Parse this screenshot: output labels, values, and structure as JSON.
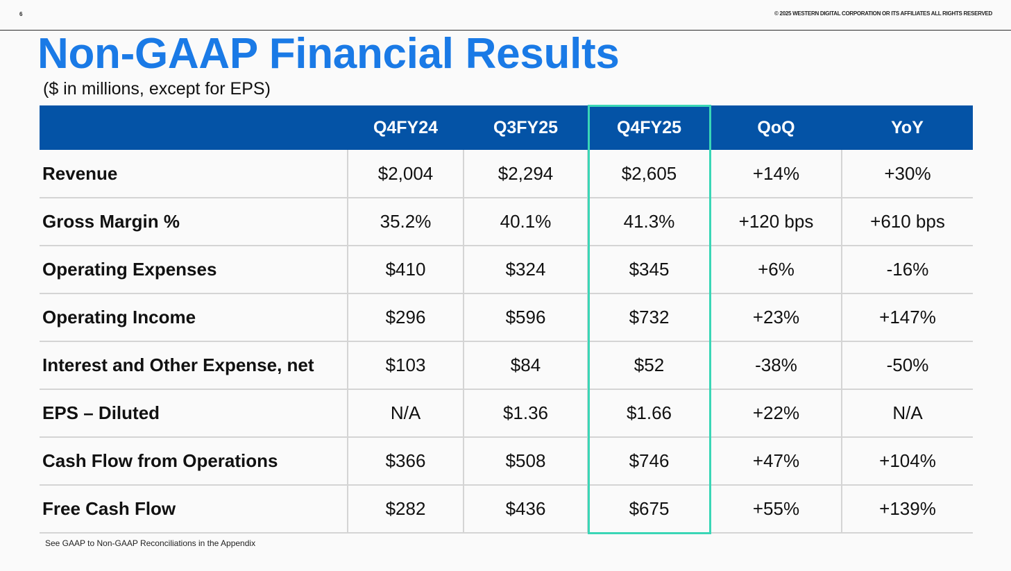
{
  "header": {
    "page_number": "6",
    "copyright": "© 2025 WESTERN DIGITAL CORPORATION OR ITS AFFILIATES  ALL RIGHTS RESERVED"
  },
  "title": "Non-GAAP Financial Results",
  "subtitle": "($ in millions, except for EPS)",
  "table": {
    "columns": [
      "",
      "Q4FY24",
      "Q3FY25",
      "Q4FY25",
      "QoQ",
      "YoY"
    ],
    "highlighted_column": "Q4FY25",
    "rows": [
      [
        "Revenue",
        "$2,004",
        "$2,294",
        "$2,605",
        "+14%",
        "+30%"
      ],
      [
        "Gross Margin %",
        "35.2%",
        "40.1%",
        "41.3%",
        "+120 bps",
        "+610 bps"
      ],
      [
        "Operating Expenses",
        "$410",
        "$324",
        "$345",
        "+6%",
        "-16%"
      ],
      [
        "Operating Income",
        "$296",
        "$596",
        "$732",
        "+23%",
        "+147%"
      ],
      [
        "Interest and Other Expense, net",
        "$103",
        "$84",
        "$52",
        "-38%",
        "-50%"
      ],
      [
        "EPS – Diluted",
        "N/A",
        "$1.36",
        "$1.66",
        "+22%",
        "N/A"
      ],
      [
        "Cash Flow from Operations",
        "$366",
        "$508",
        "$746",
        "+47%",
        "+104%"
      ],
      [
        "Free Cash Flow",
        "$282",
        "$436",
        "$675",
        "+55%",
        "+139%"
      ]
    ]
  },
  "footnote": "See GAAP to Non-GAAP Reconciliations in the Appendix",
  "colors": {
    "title": "#1a7ae6",
    "header_background": "#0453a6",
    "highlight_border": "#3ad6b6"
  }
}
